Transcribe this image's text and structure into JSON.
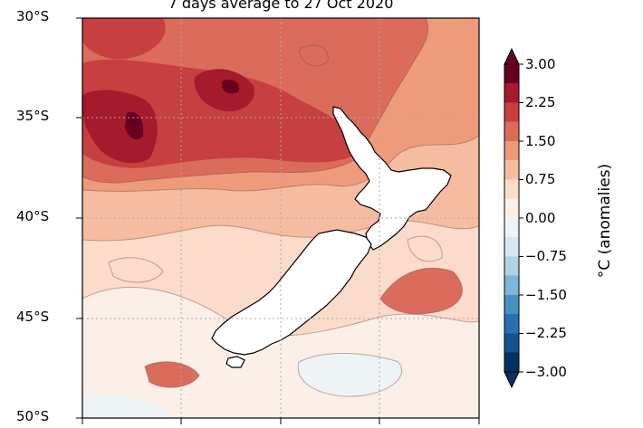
{
  "map": {
    "title": "7 days average to 27 Oct 2020",
    "lat_labels": [
      "30°S",
      "35°S",
      "40°S",
      "45°S",
      "50°S"
    ]
  },
  "colorbar": {
    "label": "°C (anomalies)",
    "ticks": [
      "3.00",
      "2.25",
      "1.50",
      "0.75",
      "0.00",
      "−0.75",
      "−1.50",
      "−2.25",
      "−3.00"
    ],
    "colors": [
      "#053061",
      "#175290",
      "#2870b1",
      "#4a91c2",
      "#7eb7d7",
      "#b0d3e6",
      "#d6e7f1",
      "#eef3f6",
      "#fbefe8",
      "#fbdbc9",
      "#f6bca1",
      "#ee9b7c",
      "#db6c5b",
      "#c73f40",
      "#a51a2d",
      "#67001f"
    ]
  },
  "palette": {
    "land": "#ffffff",
    "coast": "#000000",
    "warm_deep": "#8c0d25",
    "warm_mid": "#d6604d",
    "warm_light": "#f4a582",
    "neutral": "#f7f7f7",
    "cool_light": "#d1e5f0"
  }
}
